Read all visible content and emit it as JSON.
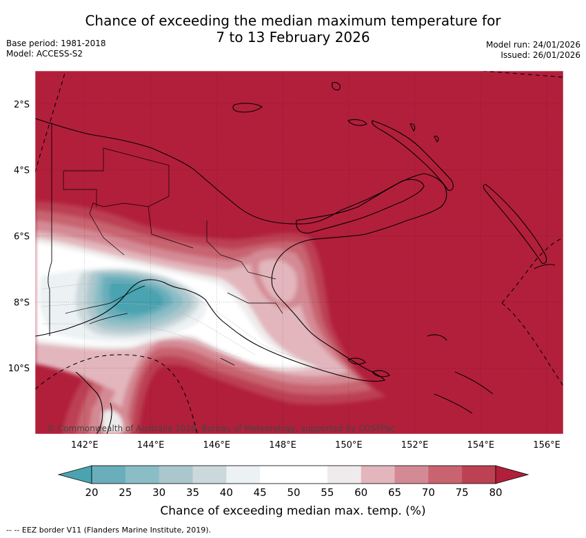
{
  "header": {
    "title_line1": "Chance of exceeding the median maximum temperature for",
    "title_line2": "7 to 13 February 2026",
    "base_period": "Base period: 1981-2018",
    "model": "Model: ACCESS-S2",
    "model_run": "Model run: 24/01/2026",
    "issued": "Issued: 26/01/2026"
  },
  "map": {
    "region": "Papua New Guinea",
    "lon_range": [
      140.5,
      156.5
    ],
    "lat_range": [
      -12,
      -1
    ],
    "lon_ticks": [
      {
        "value": 142,
        "label": "142°E"
      },
      {
        "value": 144,
        "label": "144°E"
      },
      {
        "value": 146,
        "label": "146°E"
      },
      {
        "value": 148,
        "label": "148°E"
      },
      {
        "value": 150,
        "label": "150°E"
      },
      {
        "value": 152,
        "label": "152°E"
      },
      {
        "value": 154,
        "label": "154°E"
      },
      {
        "value": 156,
        "label": "156°E"
      }
    ],
    "lat_ticks": [
      {
        "value": -2,
        "label": "2°S"
      },
      {
        "value": -4,
        "label": "4°S"
      },
      {
        "value": -6,
        "label": "6°S"
      },
      {
        "value": -8,
        "label": "8°S"
      },
      {
        "value": -10,
        "label": "10°S"
      }
    ],
    "grid": true,
    "background_color": "#b21f3b",
    "credit": "© Commonwealth of Australia 2026, Bureau of Meteorology, supported by COSPPac"
  },
  "colorbar": {
    "title": "Chance of exceeding median max. temp. (%)",
    "ticks": [
      "20",
      "25",
      "30",
      "35",
      "40",
      "45",
      "50",
      "55",
      "60",
      "65",
      "70",
      "75",
      "80"
    ],
    "low_extend_color": "#4aa3b0",
    "high_extend_color": "#b21f3b",
    "colors": [
      "#6aaebb",
      "#8abdc6",
      "#aac7cd",
      "#cbd8dc",
      "#ecf1f3",
      "#ffffff",
      "#ffffff",
      "#efebec",
      "#e2b6bc",
      "#d48a94",
      "#c8636f",
      "#bc4152"
    ]
  },
  "legend": {
    "eez_label": "-- EEZ border V11 (Flanders Marine Institute, 2019)."
  }
}
